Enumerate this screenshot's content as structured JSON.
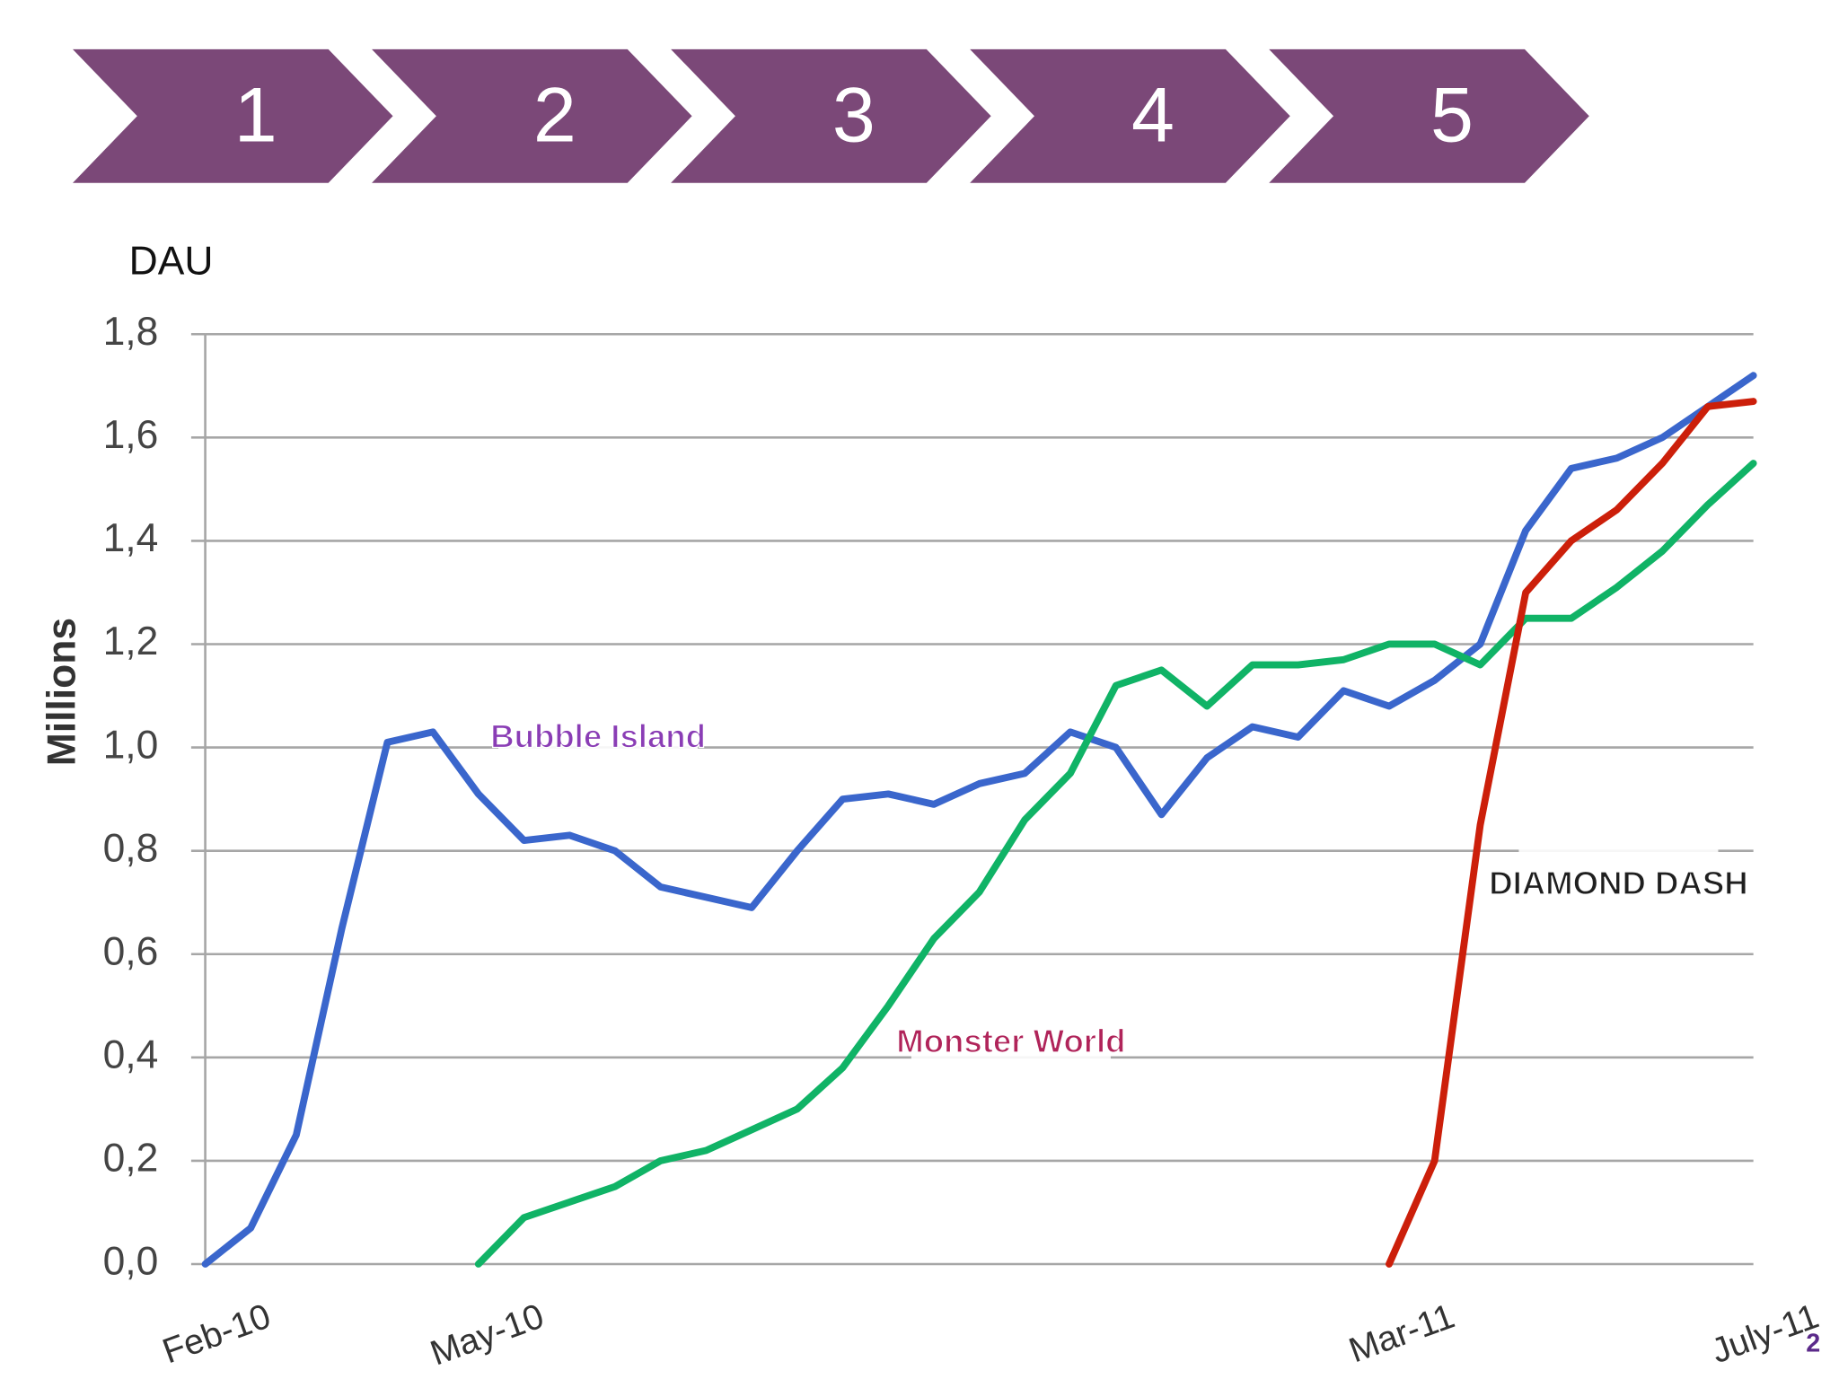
{
  "steps": [
    "1",
    "2",
    "3",
    "4",
    "5"
  ],
  "slide_number": "2",
  "chart_data": {
    "type": "line",
    "unit_label": "DAU",
    "y_label": "Millions",
    "categories": [
      "Feb-10",
      null,
      null,
      null,
      null,
      null,
      "May-10",
      null,
      null,
      null,
      null,
      null,
      null,
      null,
      null,
      null,
      null,
      null,
      null,
      null,
      null,
      null,
      null,
      null,
      null,
      null,
      "Mar-11",
      null,
      null,
      null,
      null,
      null,
      null,
      null,
      "July-11"
    ],
    "series": [
      {
        "name": "Bubble Island",
        "color": "#3a66cc",
        "values": [
          0,
          0.07,
          0.25,
          0.65,
          1.01,
          1.03,
          0.91,
          0.82,
          0.83,
          0.8,
          0.73,
          0.71,
          0.69,
          0.8,
          0.9,
          0.91,
          0.89,
          0.93,
          0.95,
          1.03,
          1.0,
          0.87,
          0.98,
          1.04,
          1.02,
          1.11,
          1.08,
          1.13,
          1.2,
          1.42,
          1.54,
          1.56,
          1.6,
          1.66,
          1.72
        ]
      },
      {
        "name": "Monster World",
        "color": "#10b366",
        "values": [
          null,
          null,
          null,
          null,
          null,
          null,
          0,
          0.09,
          0.12,
          0.15,
          0.2,
          0.22,
          0.26,
          0.3,
          0.38,
          0.5,
          0.63,
          0.72,
          0.86,
          0.95,
          1.12,
          1.15,
          1.08,
          1.16,
          1.16,
          1.17,
          1.2,
          1.2,
          1.16,
          1.25,
          1.25,
          1.31,
          1.38,
          1.47,
          1.55
        ]
      },
      {
        "name": "DIAMOND DASH",
        "color": "#cc1f0a",
        "values": [
          null,
          null,
          null,
          null,
          null,
          null,
          null,
          null,
          null,
          null,
          null,
          null,
          null,
          null,
          null,
          null,
          null,
          null,
          null,
          null,
          null,
          null,
          null,
          null,
          null,
          null,
          0,
          0.2,
          0.85,
          1.3,
          1.4,
          1.46,
          1.55,
          1.66,
          1.67
        ]
      }
    ],
    "ylim": [
      0,
      1.8
    ],
    "yticks": [
      {
        "value": 0,
        "label": "0,0"
      },
      {
        "value": 0.2,
        "label": "0,2"
      },
      {
        "value": 0.4,
        "label": "0,4"
      },
      {
        "value": 0.6,
        "label": "0,6"
      },
      {
        "value": 0.8,
        "label": "0,8"
      },
      {
        "value": 1.0,
        "label": "1,0"
      },
      {
        "value": 1.2,
        "label": "1,2"
      },
      {
        "value": 1.4,
        "label": "1,4"
      },
      {
        "value": 1.6,
        "label": "1,6"
      },
      {
        "value": 1.8,
        "label": "1,8"
      }
    ],
    "grid": true
  }
}
